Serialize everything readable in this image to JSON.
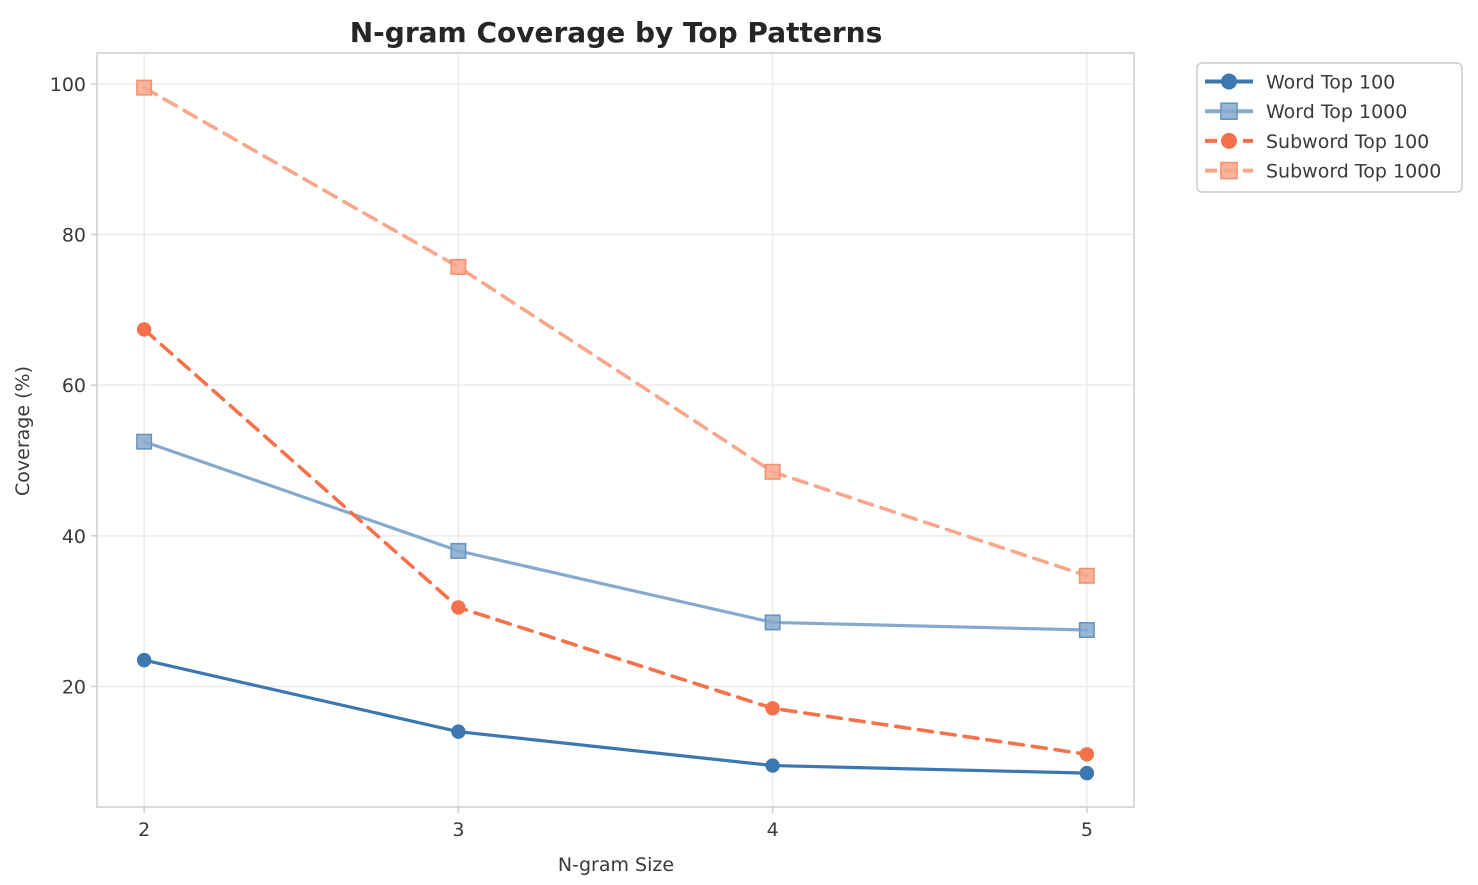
{
  "chart_data": {
    "type": "line",
    "title": "N-gram Coverage by Top Patterns",
    "xlabel": "N-gram Size",
    "ylabel": "Coverage (%)",
    "x": [
      2,
      3,
      4,
      5
    ],
    "series": [
      {
        "name": "Word Top 100",
        "values": [
          23.5,
          14.0,
          9.5,
          8.5
        ],
        "color": "#3B77B0",
        "edge_color": "#336a9e",
        "line_style": "solid",
        "marker": "circle"
      },
      {
        "name": "Word Top 1000",
        "values": [
          52.5,
          38.0,
          28.5,
          27.5
        ],
        "color": "#86AACE",
        "edge_color": "#6795C1",
        "line_style": "solid",
        "marker": "square"
      },
      {
        "name": "Subword Top 100",
        "values": [
          67.4,
          30.5,
          17.1,
          11.0
        ],
        "color": "#F4724B",
        "edge_color": "#e65f38",
        "line_style": "dashed",
        "marker": "circle"
      },
      {
        "name": "Subword Top 1000",
        "values": [
          99.5,
          75.7,
          48.5,
          34.7
        ],
        "color": "#F9A78C",
        "edge_color": "#F5906F",
        "line_style": "dashed",
        "marker": "square"
      }
    ],
    "xticks": [
      2,
      3,
      4,
      5
    ],
    "yticks": [
      20,
      40,
      60,
      80,
      100
    ],
    "xlim": [
      1.85,
      5.15
    ],
    "ylim": [
      4.0,
      104.1
    ],
    "grid": true,
    "legend_position": "outside-top-right",
    "legend_labels": [
      "Word Top 100",
      "Word Top 1000",
      "Subword Top 100",
      "Subword Top 1000"
    ]
  },
  "style_colors": {
    "grid": "#EBEBEB",
    "spine": "#D9D9D9",
    "tick_mark": "#CFCFCF",
    "legend_border": "#CCCCCC",
    "background": "#FFFFFF"
  }
}
